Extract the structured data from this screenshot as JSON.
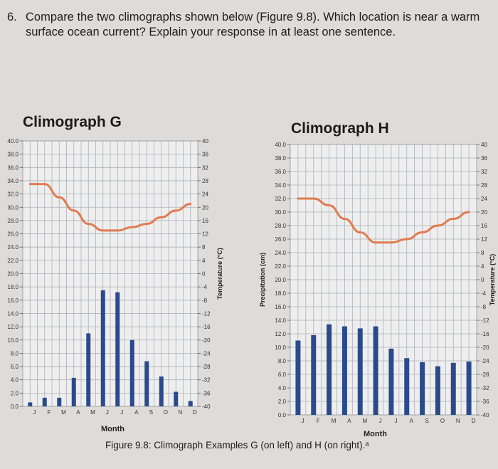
{
  "question": {
    "number": "6.",
    "text": "Compare the two climographs shown below (Figure 9.8). Which location is near a warm surface ocean current? Explain your response in at least one sentence."
  },
  "caption": "Figure 9.8: Climograph Examples G (on left) and H (on right).ᵃ",
  "colors": {
    "bar": "#2b4a8c",
    "line": "#e07b4f",
    "grid": "#aeb0b4",
    "paper": "#eeeeee"
  },
  "chart_data": [
    {
      "type": "bar",
      "title": "Climograph G",
      "xlabel": "Month",
      "ylabel": "",
      "y2label": "Temperature (°C)",
      "categories": [
        "J",
        "F",
        "M",
        "A",
        "M",
        "J",
        "J",
        "A",
        "S",
        "O",
        "N",
        "D"
      ],
      "ylim": [
        0,
        40
      ],
      "y_ticks": [
        "0.0",
        "2.0",
        "4.0",
        "6.0",
        "8.0",
        "10.0",
        "12.0",
        "14.0",
        "16.0",
        "18.0",
        "20.0",
        "22.0",
        "24.0",
        "26.0",
        "28.0",
        "30.0",
        "32.0",
        "34.0",
        "36.0",
        "38.0",
        "40.0"
      ],
      "y2lim": [
        -40,
        40
      ],
      "y2_ticks": [
        "-40",
        "-36",
        "-32",
        "-28",
        "-24",
        "-20",
        "-16",
        "-12",
        "-8",
        "-4",
        "0",
        "4",
        "8",
        "12",
        "16",
        "20",
        "24",
        "28",
        "32",
        "36",
        "40"
      ],
      "precipitation": [
        0.6,
        1.3,
        1.3,
        4.3,
        11.0,
        17.5,
        17.2,
        10.0,
        6.8,
        4.5,
        2.2,
        0.8
      ],
      "temperature": [
        27,
        27,
        23,
        19,
        15,
        13,
        13,
        14,
        15,
        17,
        19,
        21
      ]
    },
    {
      "type": "bar",
      "title": "Climograph H",
      "xlabel": "Month",
      "ylabel": "Precipitation (cm)",
      "y2label": "Temperature (°C)",
      "categories": [
        "J",
        "F",
        "M",
        "A",
        "M",
        "J",
        "J",
        "A",
        "S",
        "O",
        "N",
        "D"
      ],
      "ylim": [
        0,
        40
      ],
      "y_ticks": [
        "0.0",
        "2.0",
        "4.0",
        "6.0",
        "8.0",
        "10.0",
        "12.0",
        "14.0",
        "16.0",
        "18.0",
        "20.0",
        "22.0",
        "24.0",
        "26.0",
        "28.0",
        "30.0",
        "32.0",
        "34.0",
        "36.0",
        "38.0",
        "40.0"
      ],
      "y2lim": [
        -40,
        40
      ],
      "y2_ticks": [
        "-40",
        "-36",
        "-32",
        "-28",
        "-24",
        "-20",
        "-16",
        "-12",
        "-8",
        "-4",
        "0",
        "4",
        "8",
        "12",
        "16",
        "20",
        "24",
        "28",
        "32",
        "36",
        "40"
      ],
      "precipitation": [
        11.0,
        11.8,
        13.4,
        13.1,
        12.8,
        13.1,
        9.8,
        8.4,
        7.8,
        7.2,
        7.7,
        7.9
      ],
      "temperature": [
        24,
        24,
        22,
        18,
        14,
        11,
        11,
        12,
        14,
        16,
        18,
        20
      ]
    }
  ]
}
